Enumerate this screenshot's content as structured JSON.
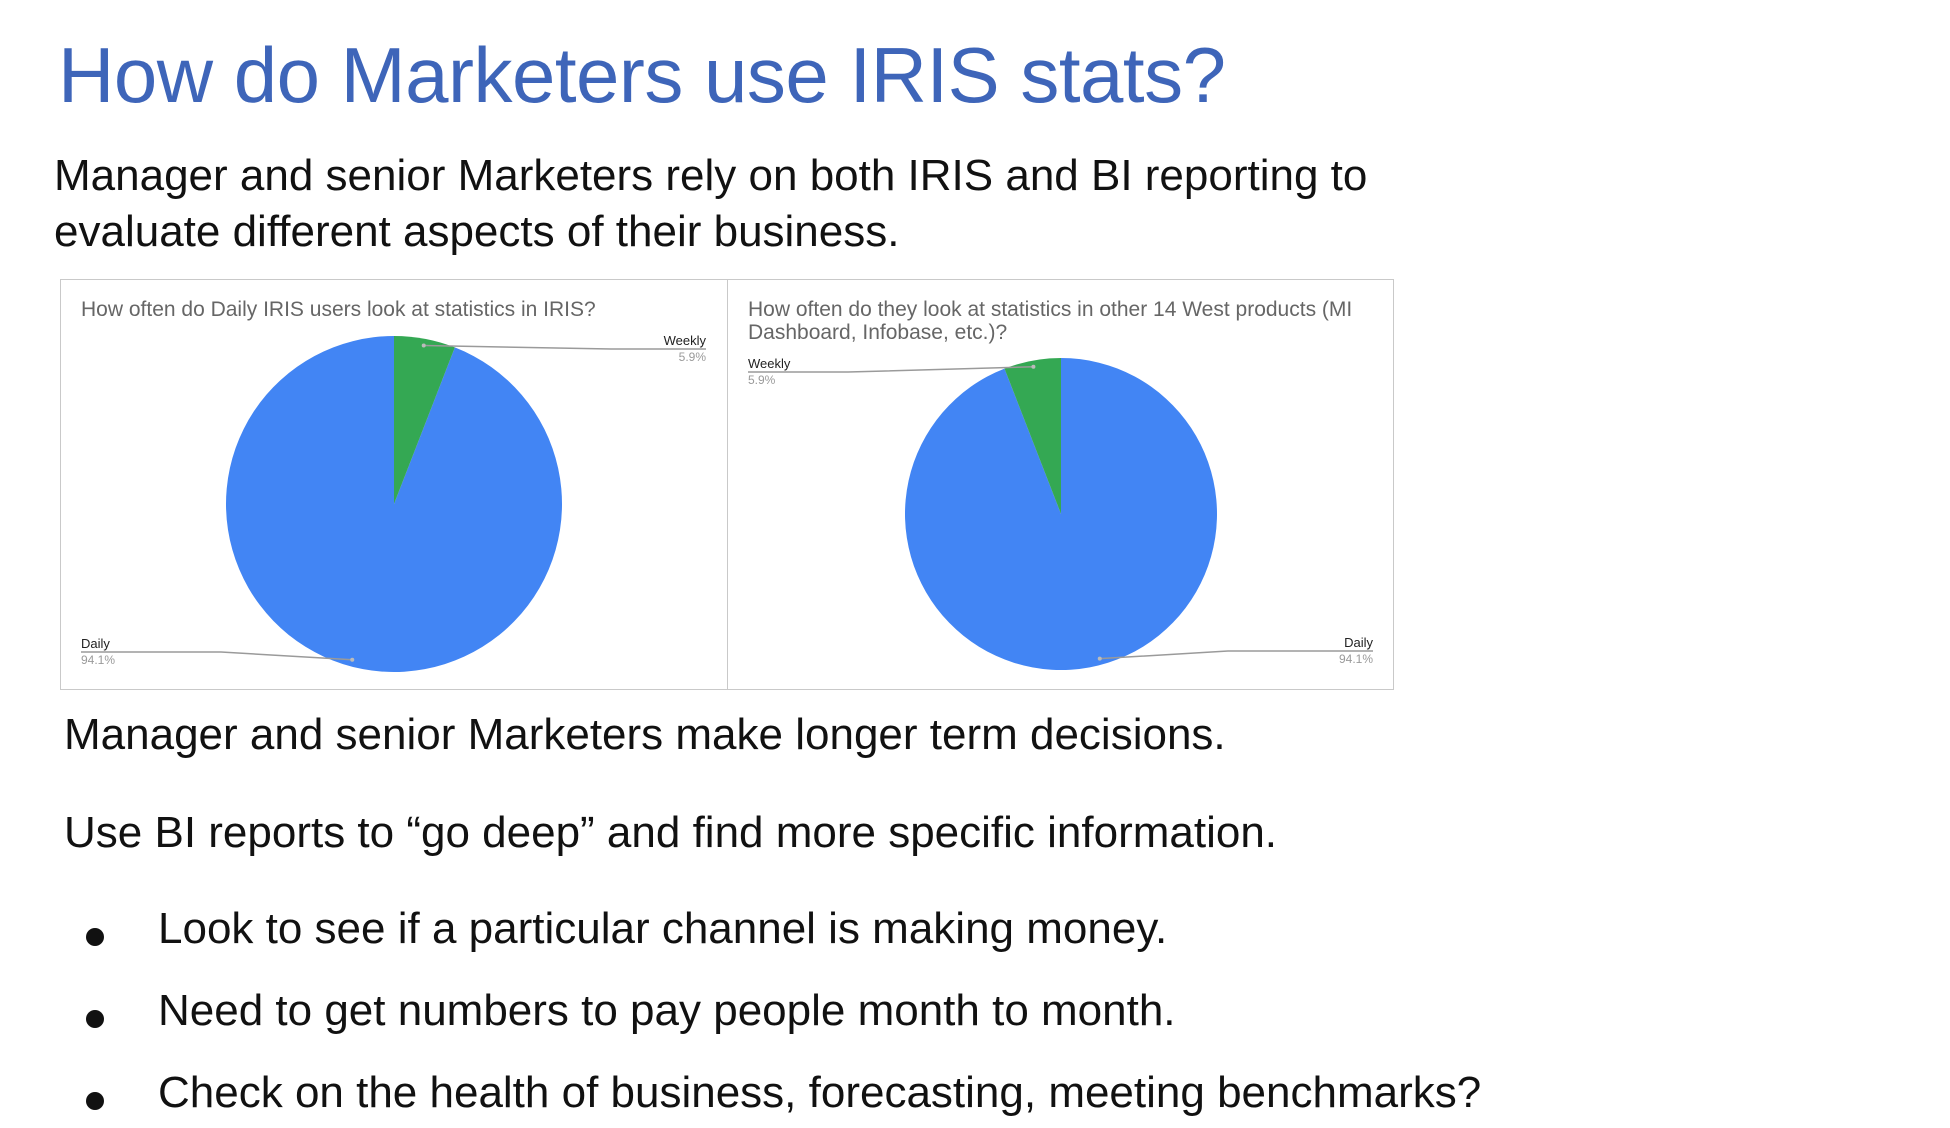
{
  "slide": {
    "title": "How do Marketers use IRIS stats?",
    "subtitle": "Manager and senior Marketers rely on both IRIS and BI reporting to evaluate different aspects of their business.",
    "line1": "Manager and senior Marketers make longer term decisions.",
    "line2": "Use BI reports to “go deep” and find more specific information.",
    "bullets": [
      "Look to see if a particular channel is making money.",
      "Need to get numbers to pay people month to month.",
      "Check on the health of business, forecasting, meeting benchmarks?"
    ]
  },
  "colors": {
    "title": "#3e65b9",
    "daily": "#4285f4",
    "weekly": "#34a853"
  },
  "chart_data": [
    {
      "type": "pie",
      "title": "How often do Daily IRIS users look at statistics in IRIS?",
      "labels": [
        "Daily",
        "Weekly"
      ],
      "values": [
        94.1,
        5.9
      ],
      "value_labels": [
        "94.1%",
        "5.9%"
      ],
      "weekly_position": "clockwise from top",
      "label_placement": {
        "Daily": "bottom-left",
        "Weekly": "top-right"
      }
    },
    {
      "type": "pie",
      "title": "How often do they look at statistics in other 14 West products (MI Dashboard, Infobase, etc.)?",
      "labels": [
        "Daily",
        "Weekly"
      ],
      "values": [
        94.1,
        5.9
      ],
      "value_labels": [
        "94.1%",
        "5.9%"
      ],
      "weekly_position": "counter-clockwise from top",
      "label_placement": {
        "Daily": "bottom-right",
        "Weekly": "top-left"
      }
    }
  ]
}
